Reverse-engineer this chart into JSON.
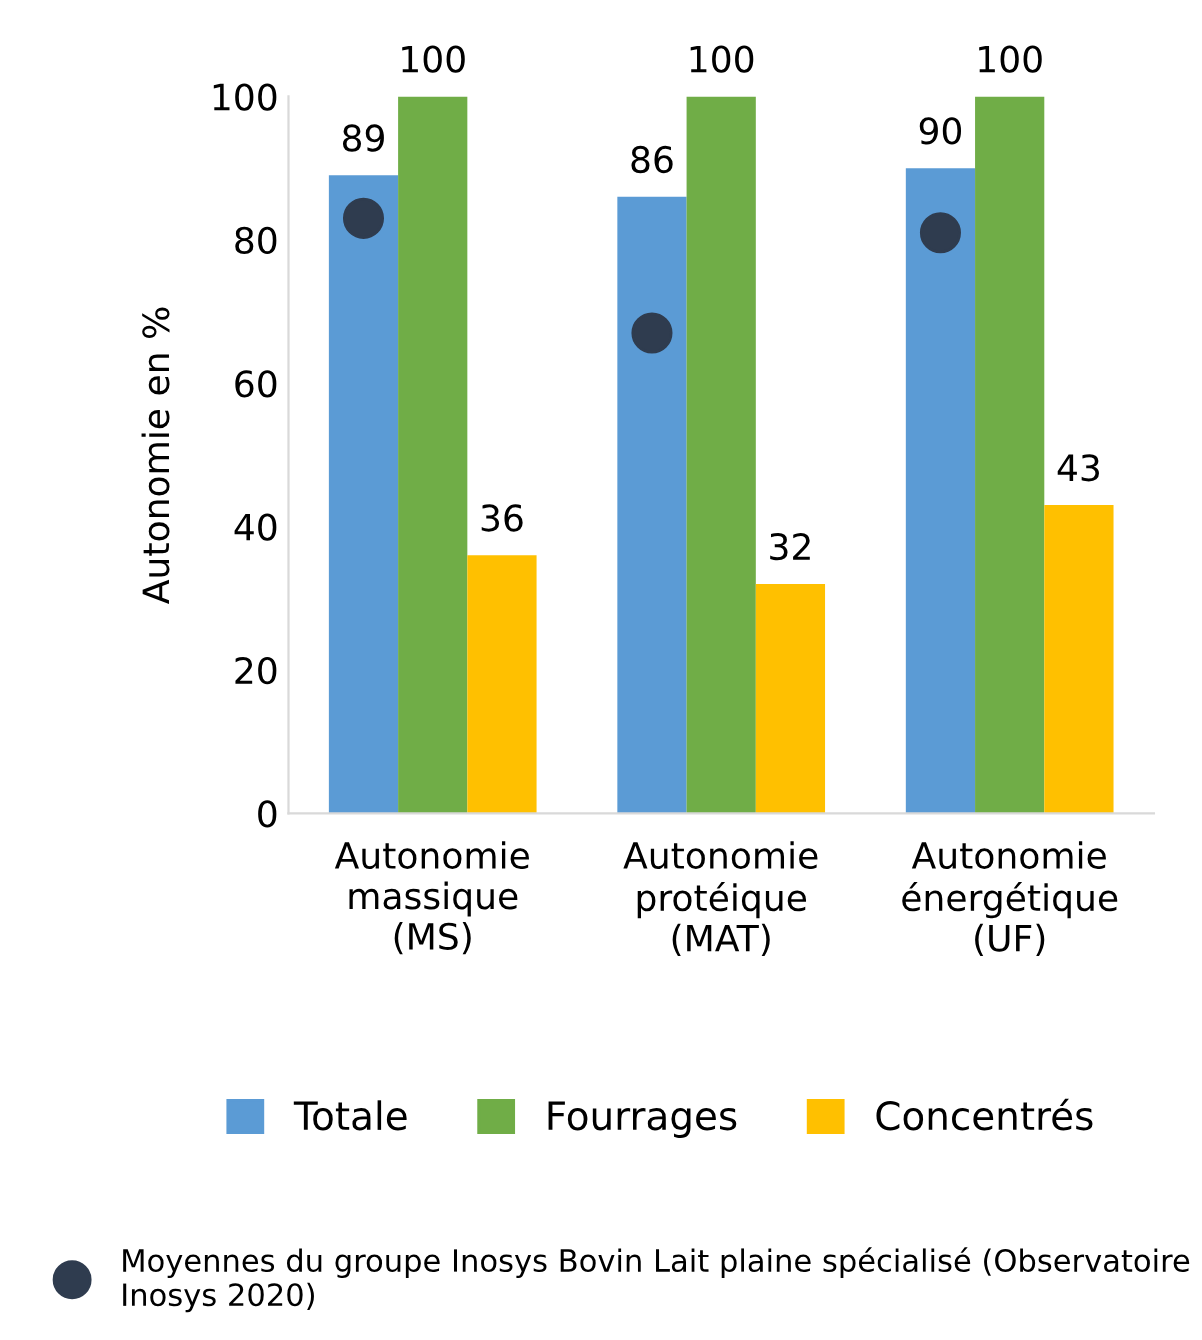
{
  "chart_data": {
    "type": "bar",
    "ylabel": "Autonomie en %",
    "categories": [
      "Autonomie\nmassique\n(MS)",
      "Autonomie\nprotéique\n(MAT)",
      "Autonomie\nénergétique\n(UF)"
    ],
    "series": [
      {
        "name": "Totale",
        "color": "#5b9bd5",
        "values": [
          89,
          86,
          90
        ],
        "value_labels": [
          "89",
          "86",
          "90"
        ]
      },
      {
        "name": "Fourrages",
        "color": "#70ad47",
        "values": [
          100,
          100,
          100
        ],
        "value_labels": [
          "100",
          "100",
          "100"
        ]
      },
      {
        "name": "Concentrés",
        "color": "#ffc000",
        "values": [
          36,
          32,
          43
        ],
        "value_labels": [
          "36",
          "32",
          "43"
        ]
      },
      {
        "name": "Moyennes du groupe Inosys Bovin Lait plaine spécialisé (Observatoire Inosys 2020)",
        "type": "scatter",
        "color": "#2f3c4f",
        "values": [
          83,
          67,
          81
        ]
      }
    ],
    "ylim": [
      0,
      100
    ],
    "yticks": [
      0,
      20,
      40,
      60,
      80,
      100
    ],
    "grid": false,
    "legend": "bottom",
    "marker": "circle"
  }
}
